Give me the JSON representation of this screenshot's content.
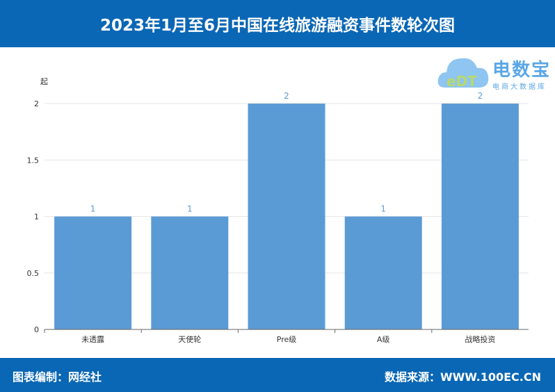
{
  "header": {
    "title": "2023年1月至6月中国在线旅游融资事件数轮次图"
  },
  "footer": {
    "left": "图表编制：网经社",
    "right": "数据来源：WWW.100EC.CN"
  },
  "logo": {
    "name": "电数宝",
    "subtitle": "电商大数据库",
    "mark": "eDT"
  },
  "chart_data": {
    "type": "bar",
    "ylabel": "起",
    "categories": [
      "未透露",
      "天使轮",
      "Pre级",
      "A级",
      "战略投资"
    ],
    "values": [
      1,
      1,
      2,
      1,
      2
    ],
    "ylim": [
      0,
      2
    ],
    "yticks": [
      "0",
      "0.5",
      "1",
      "1.5",
      "2"
    ],
    "grid": true,
    "bar_color": "#5b9bd5",
    "label_color": "#5b9bd5"
  }
}
